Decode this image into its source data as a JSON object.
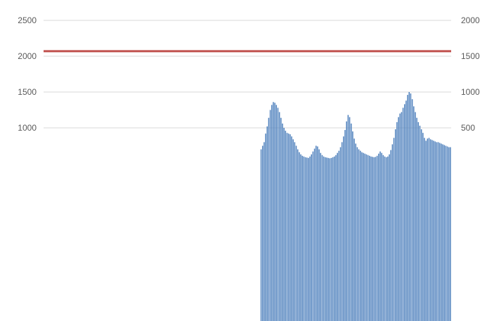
{
  "chart_data": {
    "type": "bar",
    "title": "",
    "xlabel": "",
    "ylabel": "",
    "left_axis": {
      "ticks": [
        "1000",
        "1500",
        "2000",
        "2500"
      ],
      "range_visible": [
        1000,
        2500
      ]
    },
    "right_axis": {
      "ticks": [
        "500",
        "1000",
        "1500",
        "2000"
      ],
      "range_visible": [
        500,
        2000
      ]
    },
    "grid": true,
    "legend": "bottom",
    "legend_entries": [],
    "reference_line": {
      "axis": "left",
      "value": 2070,
      "color": "#c0504d"
    },
    "bar_color": "#4f81bd",
    "bar_axis": "right",
    "values": [
      0,
      0,
      0,
      0,
      0,
      0,
      0,
      0,
      0,
      0,
      0,
      0,
      0,
      0,
      0,
      0,
      0,
      0,
      0,
      0,
      0,
      0,
      0,
      0,
      0,
      0,
      0,
      0,
      0,
      0,
      0,
      0,
      0,
      0,
      0,
      0,
      0,
      0,
      0,
      0,
      0,
      0,
      0,
      0,
      0,
      0,
      0,
      0,
      0,
      0,
      0,
      0,
      0,
      0,
      0,
      0,
      0,
      0,
      0,
      0,
      0,
      0,
      0,
      0,
      0,
      0,
      0,
      0,
      0,
      0,
      0,
      0,
      0,
      0,
      0,
      0,
      0,
      0,
      0,
      0,
      0,
      0,
      0,
      0,
      0,
      0,
      0,
      0,
      0,
      0,
      0,
      0,
      0,
      0,
      0,
      0,
      0,
      0,
      0,
      0,
      0,
      0,
      0,
      0,
      0,
      0,
      0,
      0,
      0,
      0,
      0,
      0,
      0,
      0,
      0,
      0,
      0,
      0,
      0,
      0,
      0,
      0,
      0,
      0,
      0,
      0,
      0,
      0,
      0,
      0,
      0,
      0,
      0,
      0,
      0,
      0,
      0,
      0,
      0,
      0,
      0,
      0,
      200,
      250,
      300,
      420,
      520,
      640,
      750,
      820,
      860,
      850,
      820,
      780,
      720,
      640,
      560,
      500,
      460,
      430,
      420,
      410,
      380,
      340,
      300,
      250,
      200,
      160,
      130,
      110,
      100,
      90,
      85,
      80,
      100,
      130,
      170,
      210,
      250,
      240,
      200,
      150,
      120,
      100,
      90,
      85,
      80,
      75,
      80,
      90,
      100,
      120,
      150,
      180,
      230,
      300,
      380,
      470,
      590,
      680,
      650,
      560,
      450,
      350,
      280,
      230,
      200,
      180,
      160,
      150,
      140,
      130,
      120,
      110,
      100,
      95,
      90,
      95,
      110,
      140,
      170,
      150,
      120,
      100,
      90,
      100,
      130,
      190,
      270,
      360,
      480,
      580,
      650,
      700,
      720,
      780,
      830,
      880,
      960,
      1000,
      980,
      900,
      800,
      720,
      640,
      580,
      530,
      480,
      430,
      360,
      320,
      350,
      360,
      340,
      330,
      320,
      310,
      300,
      300,
      290,
      280,
      270,
      260,
      250,
      240,
      230,
      230
    ]
  }
}
